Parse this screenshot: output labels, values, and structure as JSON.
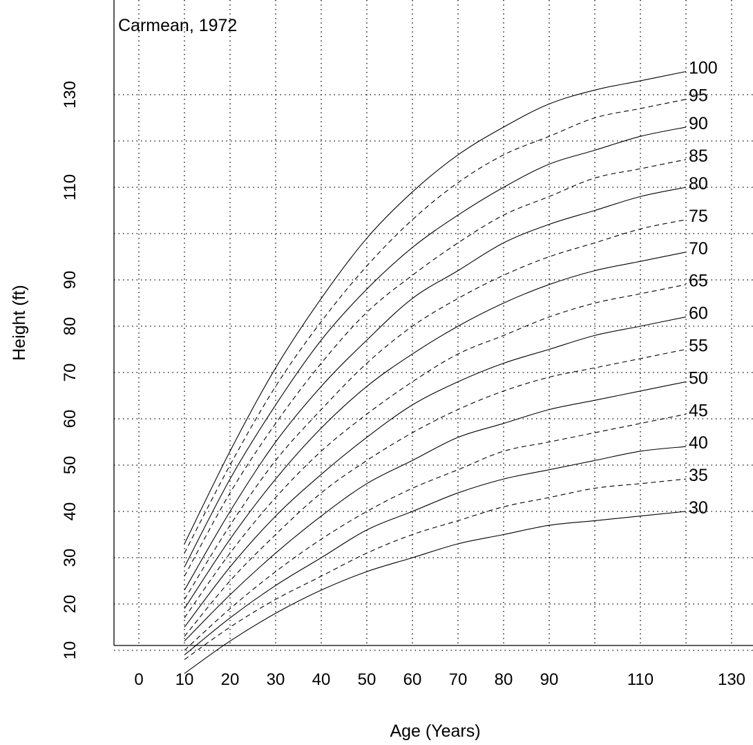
{
  "chart_data": {
    "type": "line",
    "title": "Carmean, 1972",
    "xlabel": "Age (Years)",
    "ylabel": "Height (ft)",
    "xlim": [
      -5,
      134
    ],
    "ylim": [
      0,
      140
    ],
    "grid": true,
    "x_ticks": [
      0,
      10,
      20,
      30,
      40,
      50,
      60,
      70,
      80,
      90,
      110,
      130
    ],
    "x_gridlines": [
      0,
      10,
      20,
      30,
      40,
      50,
      60,
      70,
      80,
      90,
      100,
      110,
      120,
      130
    ],
    "y_ticks": [
      10,
      20,
      30,
      40,
      50,
      60,
      70,
      80,
      90,
      110,
      130
    ],
    "y_gridlines": [
      10,
      20,
      30,
      40,
      50,
      60,
      70,
      80,
      90,
      100,
      110,
      120,
      130
    ],
    "series": [
      {
        "name": "100",
        "style": "solid",
        "x": [
          10,
          20,
          30,
          40,
          50,
          60,
          70,
          80,
          90,
          100,
          110,
          120
        ],
        "y": [
          33,
          53,
          71,
          86,
          99,
          109,
          117,
          123,
          128,
          131,
          133,
          135
        ]
      },
      {
        "name": "95",
        "style": "dashed",
        "x": [
          10,
          20,
          30,
          40,
          50,
          60,
          70,
          80,
          90,
          100,
          110,
          120
        ],
        "y": [
          31,
          50,
          67,
          81,
          93,
          103,
          111,
          117,
          121,
          125,
          127,
          129
        ]
      },
      {
        "name": "90",
        "style": "solid",
        "x": [
          10,
          20,
          30,
          40,
          50,
          60,
          70,
          80,
          90,
          100,
          110,
          120
        ],
        "y": [
          28,
          47,
          63,
          77,
          88,
          97,
          104,
          110,
          115,
          118,
          121,
          123
        ]
      },
      {
        "name": "85",
        "style": "dashed",
        "x": [
          10,
          20,
          30,
          40,
          50,
          60,
          70,
          80,
          90,
          100,
          110,
          120
        ],
        "y": [
          26,
          44,
          59,
          72,
          83,
          91,
          98,
          104,
          108,
          112,
          114,
          116
        ]
      },
      {
        "name": "80",
        "style": "solid",
        "x": [
          10,
          20,
          30,
          40,
          50,
          60,
          70,
          80,
          90,
          100,
          110,
          120
        ],
        "y": [
          23,
          40,
          55,
          67,
          77,
          86,
          92,
          98,
          102,
          105,
          108,
          110
        ]
      },
      {
        "name": "75",
        "style": "dashed",
        "x": [
          10,
          20,
          30,
          40,
          50,
          60,
          70,
          80,
          90,
          100,
          110,
          120
        ],
        "y": [
          21,
          37,
          51,
          62,
          72,
          80,
          86,
          91,
          95,
          98,
          101,
          103
        ]
      },
      {
        "name": "70",
        "style": "solid",
        "x": [
          10,
          20,
          30,
          40,
          50,
          60,
          70,
          80,
          90,
          100,
          110,
          120
        ],
        "y": [
          19,
          34,
          47,
          58,
          67,
          74,
          80,
          85,
          89,
          92,
          94,
          96
        ]
      },
      {
        "name": "65",
        "style": "dashed",
        "x": [
          10,
          20,
          30,
          40,
          50,
          60,
          70,
          80,
          90,
          100,
          110,
          120
        ],
        "y": [
          17,
          31,
          43,
          53,
          61,
          68,
          74,
          78,
          82,
          85,
          87,
          89
        ]
      },
      {
        "name": "60",
        "style": "solid",
        "x": [
          10,
          20,
          30,
          40,
          50,
          60,
          70,
          80,
          90,
          100,
          110,
          120
        ],
        "y": [
          15,
          28,
          39,
          48,
          56,
          63,
          68,
          72,
          75,
          78,
          80,
          82
        ]
      },
      {
        "name": "55",
        "style": "dashed",
        "x": [
          10,
          20,
          30,
          40,
          50,
          60,
          70,
          80,
          90,
          100,
          110,
          120
        ],
        "y": [
          13,
          25,
          35,
          44,
          51,
          57,
          62,
          66,
          69,
          71,
          73,
          75
        ]
      },
      {
        "name": "50",
        "style": "solid",
        "x": [
          10,
          20,
          30,
          40,
          50,
          60,
          70,
          80,
          90,
          100,
          110,
          120
        ],
        "y": [
          12,
          22,
          31,
          39,
          46,
          51,
          56,
          59,
          62,
          64,
          66,
          68
        ]
      },
      {
        "name": "45",
        "style": "dashed",
        "x": [
          10,
          20,
          30,
          40,
          50,
          60,
          70,
          80,
          90,
          100,
          110,
          120
        ],
        "y": [
          10,
          19,
          27,
          34,
          40,
          45,
          49,
          53,
          55,
          57,
          59,
          61
        ]
      },
      {
        "name": "40",
        "style": "solid",
        "x": [
          10,
          20,
          30,
          40,
          50,
          60,
          70,
          80,
          90,
          100,
          110,
          120
        ],
        "y": [
          9,
          17,
          24,
          30,
          36,
          40,
          44,
          47,
          49,
          51,
          53,
          54
        ]
      },
      {
        "name": "35",
        "style": "dashed",
        "x": [
          10,
          20,
          30,
          40,
          50,
          60,
          70,
          80,
          90,
          100,
          110,
          120
        ],
        "y": [
          8,
          15,
          21,
          26,
          31,
          35,
          38,
          41,
          43,
          45,
          46,
          47
        ]
      },
      {
        "name": "30",
        "style": "solid",
        "x": [
          10,
          20,
          30,
          40,
          50,
          60,
          70,
          80,
          90,
          100,
          110,
          120
        ],
        "y": [
          5,
          12,
          18,
          23,
          27,
          30,
          33,
          35,
          37,
          38,
          39,
          40
        ]
      }
    ]
  }
}
